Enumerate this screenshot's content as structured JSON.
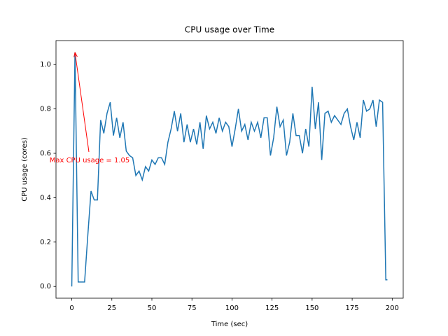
{
  "chart_data": {
    "type": "line",
    "title": "CPU usage over Time",
    "x_label": "Time (sec)",
    "y_label": "CPU usage (cores)",
    "x": [
      0,
      2,
      4,
      6,
      8,
      10,
      12,
      14,
      16,
      18,
      20,
      22,
      24,
      26,
      28,
      30,
      32,
      34,
      36,
      38,
      40,
      42,
      44,
      46,
      48,
      50,
      52,
      54,
      56,
      58,
      60,
      62,
      64,
      66,
      68,
      70,
      72,
      74,
      76,
      78,
      80,
      82,
      84,
      86,
      88,
      90,
      92,
      94,
      96,
      98,
      100,
      102,
      104,
      106,
      108,
      110,
      112,
      114,
      116,
      118,
      120,
      122,
      124,
      126,
      128,
      130,
      132,
      134,
      136,
      138,
      140,
      142,
      144,
      146,
      148,
      150,
      152,
      154,
      156,
      158,
      160,
      162,
      164,
      166,
      168,
      170,
      172,
      174,
      176,
      178,
      180,
      182,
      184,
      186,
      188,
      190,
      192,
      194,
      196,
      197
    ],
    "values": [
      0.0,
      1.055,
      0.02,
      0.02,
      0.02,
      0.23,
      0.43,
      0.39,
      0.39,
      0.75,
      0.69,
      0.78,
      0.83,
      0.68,
      0.76,
      0.67,
      0.74,
      0.61,
      0.59,
      0.58,
      0.5,
      0.52,
      0.48,
      0.54,
      0.52,
      0.57,
      0.55,
      0.58,
      0.58,
      0.55,
      0.65,
      0.71,
      0.79,
      0.7,
      0.78,
      0.65,
      0.73,
      0.65,
      0.71,
      0.64,
      0.74,
      0.62,
      0.77,
      0.71,
      0.74,
      0.69,
      0.76,
      0.7,
      0.74,
      0.72,
      0.63,
      0.71,
      0.8,
      0.7,
      0.73,
      0.66,
      0.74,
      0.7,
      0.74,
      0.67,
      0.76,
      0.76,
      0.59,
      0.67,
      0.81,
      0.72,
      0.75,
      0.59,
      0.65,
      0.78,
      0.68,
      0.68,
      0.6,
      0.71,
      0.63,
      0.9,
      0.71,
      0.83,
      0.57,
      0.78,
      0.79,
      0.74,
      0.77,
      0.75,
      0.73,
      0.78,
      0.8,
      0.72,
      0.66,
      0.74,
      0.67,
      0.84,
      0.79,
      0.8,
      0.84,
      0.72,
      0.84,
      0.83,
      0.03,
      0.03
    ],
    "color": "#1f77b4",
    "annotation": {
      "text": "Max CPU usage = 1.05",
      "color": "#ff0000"
    },
    "xlim": [
      -9.85,
      206.85
    ],
    "xticks": [
      0,
      25,
      50,
      75,
      100,
      125,
      150,
      175,
      200
    ],
    "ylim": [
      -0.053,
      1.108
    ],
    "yticks": [
      {
        "value": 0,
        "label": "0.0"
      },
      0.2,
      0.4,
      0.6,
      0.8,
      {
        "value": 1,
        "label": "1.0"
      }
    ]
  }
}
